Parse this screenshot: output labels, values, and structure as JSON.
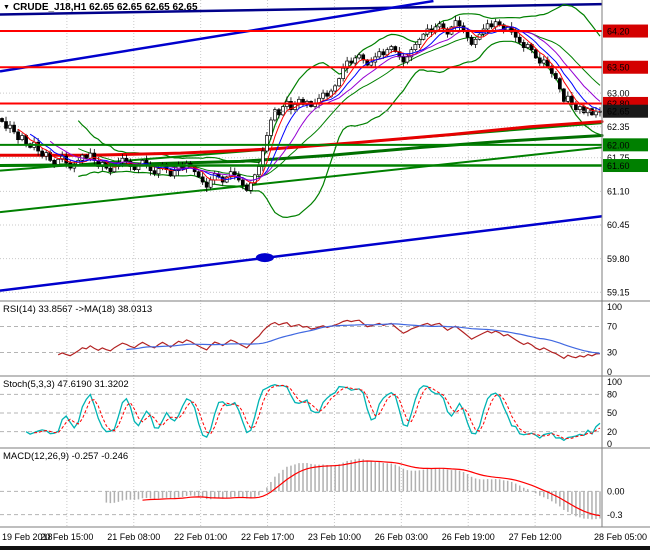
{
  "icons": {
    "symbol_dropdown": "▼"
  },
  "panels": {
    "main": {
      "symbol": "CRUDE_J18,H1",
      "ohlc": "62.65 62.65 62.65 62.65"
    },
    "rsi": {
      "label": "RSI(14) 33.8567  ->MA(18) 38.0313"
    },
    "stoch": {
      "label": "Stoch(5,3,3) 47.6190 31.3202"
    },
    "macd": {
      "label": "MACD(12,26,9) -0.257 -0.246"
    }
  },
  "chart_data": [
    {
      "type": "candlestick",
      "title": "CRUDE_J18,H1",
      "timeframe": "H1",
      "current_price": 62.65,
      "y_range": [
        59.0,
        64.8
      ],
      "y_ticks": [
        63.0,
        62.35,
        61.75,
        61.1,
        60.45,
        59.8,
        59.15
      ],
      "x_labels": [
        "19 Feb 2018",
        "20 Feb 15:00",
        "21 Feb 08:00",
        "22 Feb 01:00",
        "22 Feb 17:00",
        "23 Feb 10:00",
        "26 Feb 03:00",
        "26 Feb 19:00",
        "27 Feb 12:00",
        "28 Feb 05:00"
      ],
      "closes": [
        62.45,
        62.32,
        62.38,
        62.25,
        62.1,
        62.18,
        62.02,
        61.95,
        62.05,
        61.88,
        61.78,
        61.85,
        61.7,
        61.62,
        61.72,
        61.78,
        61.65,
        61.55,
        61.62,
        61.7,
        61.8,
        61.74,
        61.84,
        61.7,
        61.58,
        61.66,
        61.55,
        61.48,
        61.58,
        61.66,
        61.74,
        61.68,
        61.58,
        61.52,
        61.62,
        61.7,
        61.6,
        61.5,
        61.44,
        61.54,
        61.62,
        61.52,
        61.4,
        61.5,
        61.6,
        61.54,
        61.64,
        61.58,
        61.48,
        61.38,
        61.28,
        61.18,
        61.32,
        61.44,
        61.38,
        61.28,
        61.38,
        61.48,
        61.42,
        61.32,
        61.22,
        61.12,
        61.26,
        61.42,
        61.58,
        61.88,
        62.18,
        62.48,
        62.68,
        62.58,
        62.74,
        62.84,
        62.68,
        62.78,
        62.88,
        62.78,
        62.84,
        62.74,
        62.8,
        62.9,
        63.0,
        62.94,
        63.04,
        63.14,
        63.28,
        63.48,
        63.62,
        63.58,
        63.68,
        63.74,
        63.64,
        63.54,
        63.6,
        63.7,
        63.8,
        63.74,
        63.84,
        63.9,
        63.8,
        63.7,
        63.6,
        63.7,
        63.84,
        63.94,
        64.04,
        64.14,
        64.24,
        64.18,
        64.28,
        64.34,
        64.24,
        64.14,
        64.28,
        64.4,
        64.3,
        64.2,
        64.08,
        63.94,
        64.04,
        64.14,
        64.24,
        64.34,
        64.28,
        64.38,
        64.32,
        64.22,
        64.28,
        64.18,
        64.08,
        63.98,
        63.88,
        63.94,
        63.84,
        63.68,
        63.58,
        63.64,
        63.52,
        63.38,
        63.28,
        63.08,
        62.84,
        62.94,
        62.78,
        62.68,
        62.74,
        62.62,
        62.7,
        62.58,
        62.64,
        62.65
      ],
      "levels": [
        {
          "price": 64.2,
          "color": "#ff0000",
          "badge": "#d40000",
          "width": 2
        },
        {
          "price": 63.5,
          "color": "#ff0000",
          "badge": "#d40000",
          "width": 2
        },
        {
          "price": 62.8,
          "color": "#ff0000",
          "badge": "#d40000",
          "width": 2
        },
        {
          "price": 62.65,
          "color": "#909090",
          "badge": "#1a1a1a",
          "width": 1,
          "style": "dashed",
          "role": "current-price"
        },
        {
          "price": 62.0,
          "color": "#008000",
          "badge": "#008000",
          "width": 2
        },
        {
          "price": 61.6,
          "color": "#008000",
          "badge": "#008000",
          "width": 2.5
        }
      ],
      "trendlines": [
        {
          "from": [
            0,
            64.52
          ],
          "to": [
            1,
            64.72
          ],
          "color": "#00008b",
          "width": 2.5
        },
        {
          "from": [
            0,
            63.42
          ],
          "to": [
            0.72,
            64.78
          ],
          "color": "#0000cd",
          "width": 2.5
        },
        {
          "from": [
            0,
            59.18
          ],
          "to": [
            1,
            60.62
          ],
          "color": "#0000cd",
          "width": 2.5
        },
        {
          "from": [
            0,
            61.5
          ],
          "to": [
            1,
            62.42
          ],
          "color": "#008000",
          "width": 2
        },
        {
          "from": [
            0,
            60.7
          ],
          "to": [
            1,
            61.95
          ],
          "color": "#008000",
          "width": 2
        }
      ],
      "curves": [
        {
          "name": "long-ma-red",
          "color": "#e60000",
          "width": 3,
          "points": [
            [
              0,
              61.8
            ],
            [
              0.15,
              61.8
            ],
            [
              0.3,
              61.84
            ],
            [
              0.45,
              61.92
            ],
            [
              0.6,
              62.05
            ],
            [
              0.75,
              62.2
            ],
            [
              0.88,
              62.35
            ],
            [
              1,
              62.45
            ]
          ]
        },
        {
          "name": "long-ma-green",
          "color": "#007000",
          "width": 3,
          "points": [
            [
              0,
              61.6
            ],
            [
              0.2,
              61.62
            ],
            [
              0.4,
              61.68
            ],
            [
              0.55,
              61.8
            ],
            [
              0.7,
              61.95
            ],
            [
              0.85,
              62.08
            ],
            [
              1,
              62.18
            ]
          ]
        }
      ],
      "ellipse": {
        "x": 0.44,
        "price": 59.82,
        "color": "#0000cd"
      },
      "bollinger": {
        "period": 20,
        "deviation": 2,
        "color": "#008000"
      },
      "ma_overlays": [
        {
          "period": 5,
          "color": "#ff0000"
        },
        {
          "period": 8,
          "color": "#0000ff"
        },
        {
          "period": 13,
          "color": "#9400d3"
        }
      ]
    },
    {
      "type": "line",
      "indicator": "RSI",
      "period": 14,
      "ma_period": 18,
      "current_value": 33.8567,
      "current_ma": 38.0313,
      "range": [
        0,
        100
      ],
      "ticks": [
        100,
        70,
        30,
        0
      ],
      "dashed_levels": [
        70,
        30
      ],
      "colors": {
        "line": "#b22222",
        "ma": "#4169e1"
      }
    },
    {
      "type": "line",
      "indicator": "Stochastic",
      "k_period": 5,
      "slowing": 3,
      "d_period": 3,
      "current_k": 47.619,
      "current_d": 31.3202,
      "range": [
        0,
        100
      ],
      "ticks": [
        100,
        80,
        50,
        20,
        0
      ],
      "dashed_levels": [
        80,
        50,
        20
      ],
      "colors": {
        "k": "#00b3b3",
        "d": "#ff0000"
      }
    },
    {
      "type": "histogram",
      "indicator": "MACD",
      "fast": 12,
      "slow": 26,
      "signal": 9,
      "current_macd": -0.257,
      "current_signal": -0.246,
      "ticks": [
        {
          "v": 0,
          "label": "0.00"
        },
        {
          "v": -0.3,
          "label": "-0.3"
        }
      ],
      "dashed_levels": [
        0,
        -0.3
      ],
      "colors": {
        "histogram": "#b0b0b0",
        "signal": "#ff0000"
      }
    }
  ]
}
